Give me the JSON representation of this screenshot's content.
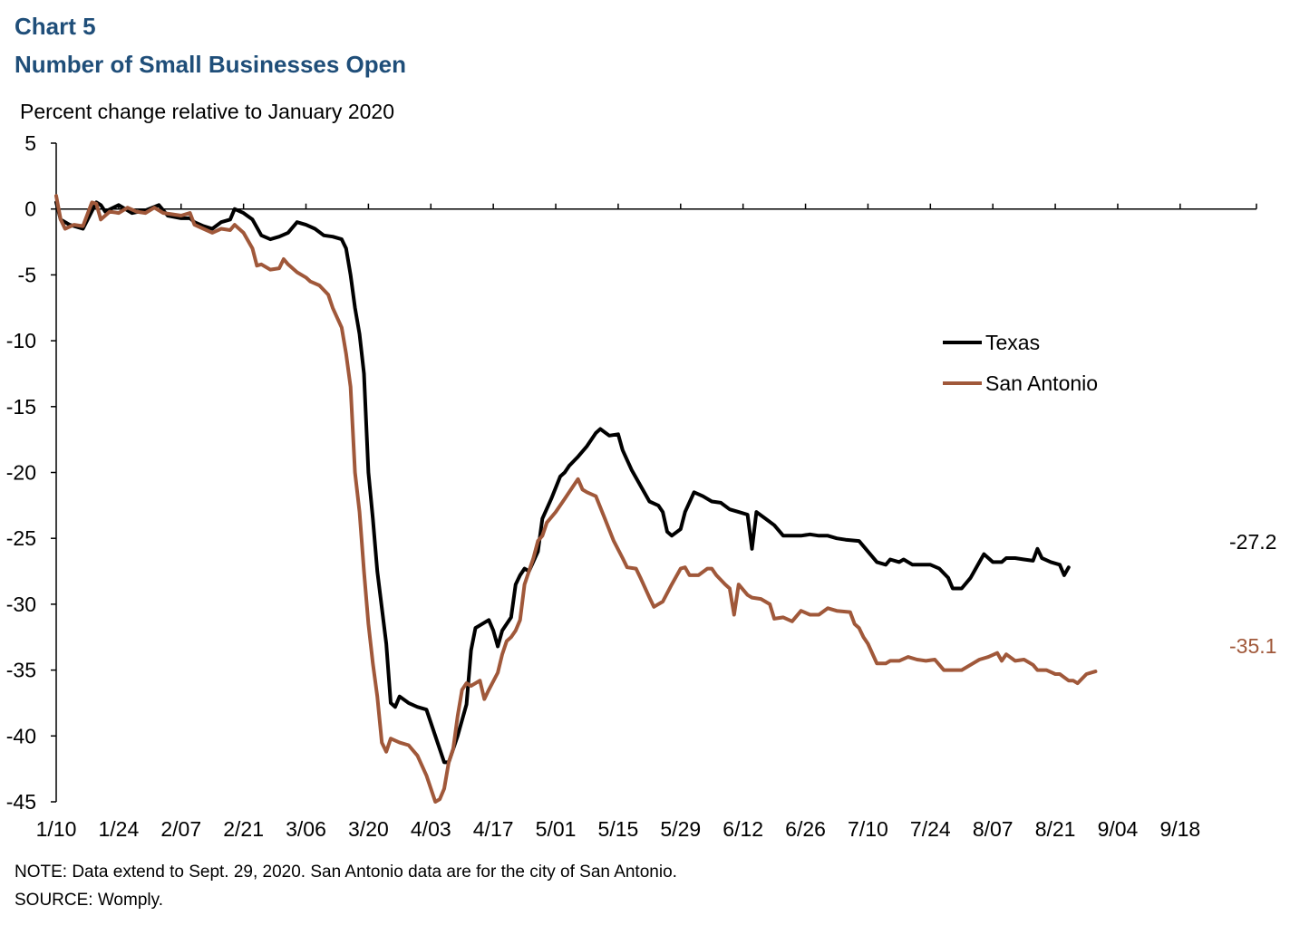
{
  "header": {
    "chart_number": "Chart 5",
    "title": "Number of Small Businesses Open"
  },
  "footer": {
    "note": "NOTE: Data extend to Sept. 29, 2020. San Antonio data are for the city of San Antonio.",
    "source": "SOURCE: Womply."
  },
  "colors": {
    "texas": "#000000",
    "san_antonio": "#a0583a",
    "title": "#1f4e79"
  },
  "chart_data": {
    "type": "line",
    "title": "Number of Small Businesses Open",
    "ylabel": "Percent change relative to January 2020",
    "xlabel": "",
    "ylim": [
      -45,
      5
    ],
    "yticks": [
      5,
      0,
      -5,
      -10,
      -15,
      -20,
      -25,
      -30,
      -35,
      -40,
      -45
    ],
    "x_start": "1/10",
    "x_end": "9/29",
    "xtick_labels": [
      "1/10",
      "1/24",
      "2/07",
      "2/21",
      "3/06",
      "3/20",
      "4/03",
      "4/17",
      "5/01",
      "5/15",
      "5/29",
      "6/12",
      "6/26",
      "7/10",
      "7/24",
      "8/07",
      "8/21",
      "9/04",
      "9/18"
    ],
    "legend": [
      "Texas",
      "San Antonio"
    ],
    "legend_position": "right-middle",
    "series": [
      {
        "name": "Texas",
        "end_label": "-27.2",
        "points": [
          [
            0,
            0.5
          ],
          [
            1,
            -0.8
          ],
          [
            3,
            -1.2
          ],
          [
            6,
            -1.5
          ],
          [
            9,
            0.5
          ],
          [
            10,
            0.3
          ],
          [
            11,
            -0.2
          ],
          [
            14,
            0.3
          ],
          [
            17,
            -0.3
          ],
          [
            20,
            -0.1
          ],
          [
            23,
            0.3
          ],
          [
            25,
            -0.5
          ],
          [
            28,
            -0.7
          ],
          [
            30,
            -0.7
          ],
          [
            31,
            -1.0
          ],
          [
            33,
            -1.3
          ],
          [
            35,
            -1.5
          ],
          [
            37,
            -1.0
          ],
          [
            39,
            -0.8
          ],
          [
            40,
            0.0
          ],
          [
            42,
            -0.3
          ],
          [
            44,
            -0.8
          ],
          [
            46,
            -2.0
          ],
          [
            48,
            -2.3
          ],
          [
            50,
            -2.1
          ],
          [
            52,
            -1.8
          ],
          [
            54,
            -1.0
          ],
          [
            56,
            -1.2
          ],
          [
            58,
            -1.5
          ],
          [
            60,
            -2.0
          ],
          [
            62,
            -2.1
          ],
          [
            64,
            -2.3
          ],
          [
            65,
            -3.0
          ],
          [
            66,
            -5.0
          ],
          [
            67,
            -7.5
          ],
          [
            68,
            -9.5
          ],
          [
            69,
            -12.5
          ],
          [
            70,
            -20.0
          ],
          [
            71,
            -23.5
          ],
          [
            72,
            -27.5
          ],
          [
            74,
            -33.0
          ],
          [
            75,
            -37.5
          ],
          [
            76,
            -37.8
          ],
          [
            77,
            -37.0
          ],
          [
            79,
            -37.5
          ],
          [
            81,
            -37.8
          ],
          [
            83,
            -38.0
          ],
          [
            85,
            -40.0
          ],
          [
            87,
            -42.0
          ],
          [
            88,
            -42.0
          ],
          [
            90,
            -40.0
          ],
          [
            92,
            -37.6
          ],
          [
            93,
            -33.5
          ],
          [
            94,
            -31.8
          ],
          [
            95,
            -31.6
          ],
          [
            97,
            -31.2
          ],
          [
            98,
            -32.0
          ],
          [
            99,
            -33.2
          ],
          [
            100,
            -32.0
          ],
          [
            102,
            -31.0
          ],
          [
            103,
            -28.5
          ],
          [
            104,
            -27.8
          ],
          [
            105,
            -27.3
          ],
          [
            106,
            -27.5
          ],
          [
            108,
            -26.0
          ],
          [
            109,
            -23.5
          ],
          [
            111,
            -22.0
          ],
          [
            113,
            -20.3
          ],
          [
            114,
            -20.0
          ],
          [
            115,
            -19.5
          ],
          [
            117,
            -18.8
          ],
          [
            119,
            -18.0
          ],
          [
            121,
            -17.0
          ],
          [
            122,
            -16.7
          ],
          [
            124,
            -17.2
          ],
          [
            126,
            -17.1
          ],
          [
            127,
            -18.3
          ],
          [
            129,
            -19.8
          ],
          [
            131,
            -21.0
          ],
          [
            133,
            -22.2
          ],
          [
            135,
            -22.5
          ],
          [
            136,
            -23.0
          ],
          [
            137,
            -24.5
          ],
          [
            138,
            -24.8
          ],
          [
            140,
            -24.3
          ],
          [
            141,
            -23.0
          ],
          [
            143,
            -21.5
          ],
          [
            145,
            -21.8
          ],
          [
            147,
            -22.2
          ],
          [
            149,
            -22.3
          ],
          [
            151,
            -22.8
          ],
          [
            153,
            -23.0
          ],
          [
            155,
            -23.2
          ],
          [
            156,
            -25.8
          ],
          [
            157,
            -23.0
          ],
          [
            159,
            -23.5
          ],
          [
            161,
            -24.0
          ],
          [
            163,
            -24.8
          ],
          [
            165,
            -24.8
          ],
          [
            167,
            -24.8
          ],
          [
            169,
            -24.7
          ],
          [
            171,
            -24.8
          ],
          [
            173,
            -24.8
          ],
          [
            175,
            -25.0
          ],
          [
            177,
            -25.1
          ],
          [
            180,
            -25.2
          ],
          [
            182,
            -26.0
          ],
          [
            184,
            -26.8
          ],
          [
            186,
            -27.0
          ],
          [
            187,
            -26.6
          ],
          [
            189,
            -26.8
          ],
          [
            190,
            -26.6
          ],
          [
            192,
            -27.0
          ],
          [
            194,
            -27.0
          ],
          [
            196,
            -27.0
          ],
          [
            198,
            -27.3
          ],
          [
            200,
            -28.0
          ],
          [
            201,
            -28.8
          ],
          [
            203,
            -28.8
          ],
          [
            205,
            -28.0
          ],
          [
            207,
            -26.8
          ],
          [
            208,
            -26.2
          ],
          [
            210,
            -26.8
          ],
          [
            212,
            -26.8
          ],
          [
            213,
            -26.5
          ],
          [
            215,
            -26.5
          ],
          [
            217,
            -26.6
          ],
          [
            219,
            -26.7
          ],
          [
            220,
            -25.8
          ],
          [
            221,
            -26.5
          ],
          [
            223,
            -26.8
          ],
          [
            225,
            -27.0
          ],
          [
            226,
            -27.8
          ],
          [
            227,
            -27.2
          ]
        ]
      },
      {
        "name": "San Antonio",
        "end_label": "-35.1",
        "points": [
          [
            0,
            1.0
          ],
          [
            1,
            -0.8
          ],
          [
            2,
            -1.5
          ],
          [
            4,
            -1.2
          ],
          [
            6,
            -1.3
          ],
          [
            8,
            0.5
          ],
          [
            9,
            0.4
          ],
          [
            10,
            -0.8
          ],
          [
            12,
            -0.2
          ],
          [
            14,
            -0.3
          ],
          [
            16,
            0.1
          ],
          [
            18,
            -0.2
          ],
          [
            20,
            -0.3
          ],
          [
            22,
            0.1
          ],
          [
            24,
            -0.3
          ],
          [
            26,
            -0.4
          ],
          [
            28,
            -0.5
          ],
          [
            30,
            -0.3
          ],
          [
            31,
            -1.2
          ],
          [
            33,
            -1.5
          ],
          [
            35,
            -1.8
          ],
          [
            37,
            -1.5
          ],
          [
            39,
            -1.6
          ],
          [
            40,
            -1.2
          ],
          [
            42,
            -1.8
          ],
          [
            44,
            -3.0
          ],
          [
            45,
            -4.3
          ],
          [
            46,
            -4.2
          ],
          [
            48,
            -4.6
          ],
          [
            50,
            -4.5
          ],
          [
            51,
            -3.8
          ],
          [
            52,
            -4.2
          ],
          [
            54,
            -4.8
          ],
          [
            56,
            -5.2
          ],
          [
            57,
            -5.5
          ],
          [
            59,
            -5.8
          ],
          [
            61,
            -6.5
          ],
          [
            62,
            -7.5
          ],
          [
            64,
            -9.0
          ],
          [
            65,
            -11.0
          ],
          [
            66,
            -13.5
          ],
          [
            67,
            -20.0
          ],
          [
            68,
            -23.0
          ],
          [
            69,
            -27.5
          ],
          [
            70,
            -31.5
          ],
          [
            71,
            -34.5
          ],
          [
            72,
            -37.0
          ],
          [
            73,
            -40.5
          ],
          [
            74,
            -41.2
          ],
          [
            75,
            -40.2
          ],
          [
            77,
            -40.5
          ],
          [
            79,
            -40.7
          ],
          [
            81,
            -41.5
          ],
          [
            83,
            -43.0
          ],
          [
            85,
            -45.0
          ],
          [
            86,
            -44.8
          ],
          [
            87,
            -44.0
          ],
          [
            88,
            -42.0
          ],
          [
            89,
            -41.0
          ],
          [
            90,
            -38.5
          ],
          [
            91,
            -36.5
          ],
          [
            92,
            -36.0
          ],
          [
            93,
            -36.2
          ],
          [
            95,
            -35.8
          ],
          [
            96,
            -37.2
          ],
          [
            97,
            -36.5
          ],
          [
            99,
            -35.2
          ],
          [
            100,
            -33.8
          ],
          [
            101,
            -32.8
          ],
          [
            102,
            -32.5
          ],
          [
            103,
            -32.0
          ],
          [
            104,
            -31.2
          ],
          [
            105,
            -28.5
          ],
          [
            107,
            -26.5
          ],
          [
            108,
            -25.2
          ],
          [
            109,
            -24.8
          ],
          [
            110,
            -23.8
          ],
          [
            112,
            -23.0
          ],
          [
            114,
            -22.0
          ],
          [
            116,
            -21.0
          ],
          [
            117,
            -20.5
          ],
          [
            118,
            -21.3
          ],
          [
            119,
            -21.5
          ],
          [
            121,
            -21.8
          ],
          [
            123,
            -23.5
          ],
          [
            125,
            -25.2
          ],
          [
            127,
            -26.5
          ],
          [
            128,
            -27.2
          ],
          [
            130,
            -27.3
          ],
          [
            131,
            -28.0
          ],
          [
            133,
            -29.5
          ],
          [
            134,
            -30.2
          ],
          [
            136,
            -29.8
          ],
          [
            138,
            -28.5
          ],
          [
            140,
            -27.3
          ],
          [
            141,
            -27.2
          ],
          [
            142,
            -27.8
          ],
          [
            144,
            -27.8
          ],
          [
            146,
            -27.3
          ],
          [
            147,
            -27.3
          ],
          [
            148,
            -27.8
          ],
          [
            150,
            -28.5
          ],
          [
            151,
            -28.8
          ],
          [
            152,
            -30.8
          ],
          [
            153,
            -28.5
          ],
          [
            155,
            -29.3
          ],
          [
            156,
            -29.5
          ],
          [
            158,
            -29.6
          ],
          [
            160,
            -30.0
          ],
          [
            161,
            -31.1
          ],
          [
            163,
            -31.0
          ],
          [
            165,
            -31.3
          ],
          [
            167,
            -30.5
          ],
          [
            169,
            -30.8
          ],
          [
            171,
            -30.8
          ],
          [
            173,
            -30.3
          ],
          [
            175,
            -30.5
          ],
          [
            178,
            -30.6
          ],
          [
            179,
            -31.5
          ],
          [
            180,
            -31.8
          ],
          [
            181,
            -32.5
          ],
          [
            182,
            -33.0
          ],
          [
            184,
            -34.5
          ],
          [
            186,
            -34.5
          ],
          [
            187,
            -34.3
          ],
          [
            189,
            -34.3
          ],
          [
            191,
            -34.0
          ],
          [
            193,
            -34.2
          ],
          [
            195,
            -34.3
          ],
          [
            197,
            -34.2
          ],
          [
            199,
            -35.0
          ],
          [
            201,
            -35.0
          ],
          [
            203,
            -35.0
          ],
          [
            205,
            -34.6
          ],
          [
            207,
            -34.2
          ],
          [
            209,
            -34.0
          ],
          [
            211,
            -33.7
          ],
          [
            212,
            -34.3
          ],
          [
            213,
            -33.8
          ],
          [
            215,
            -34.3
          ],
          [
            217,
            -34.2
          ],
          [
            219,
            -34.6
          ],
          [
            220,
            -35.0
          ],
          [
            222,
            -35.0
          ],
          [
            224,
            -35.3
          ],
          [
            225,
            -35.3
          ],
          [
            227,
            -35.8
          ],
          [
            228,
            -35.8
          ],
          [
            229,
            -36.0
          ],
          [
            231,
            -35.3
          ],
          [
            233,
            -35.1
          ]
        ]
      }
    ]
  }
}
